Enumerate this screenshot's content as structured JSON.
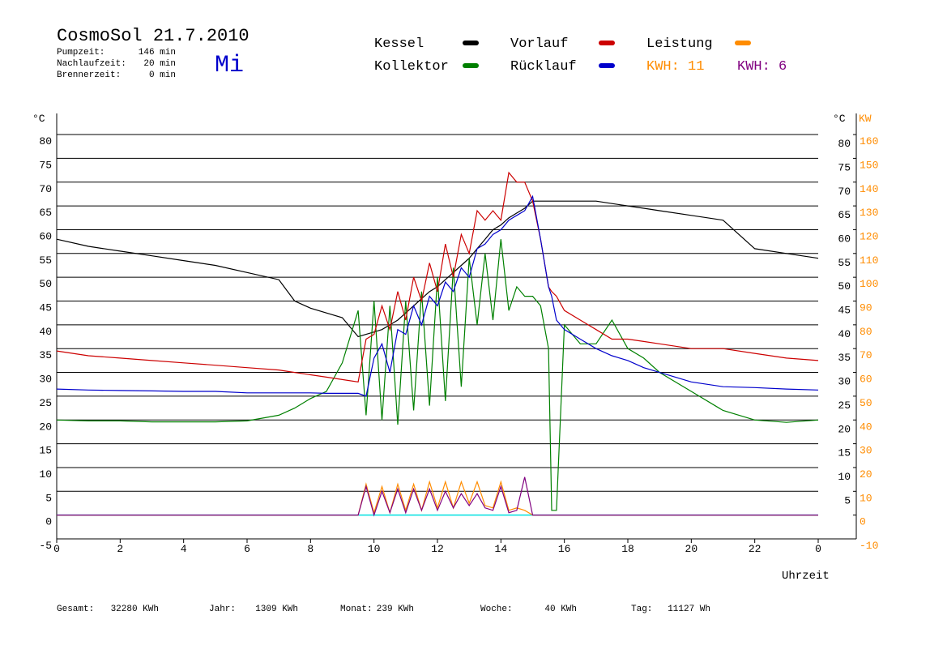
{
  "chart_data": {
    "type": "line",
    "title": "CosmoSol 21.7.2010",
    "weekday": "Mi",
    "info": [
      [
        "Pumpzeit:",
        "146 min"
      ],
      [
        "Nachlaufzeit:",
        "20 min"
      ],
      [
        "Brennerzeit:",
        "0 min"
      ]
    ],
    "y_unit": "°C",
    "y2_unit": "KW",
    "x_label": "Uhrzeit",
    "totals": [
      {
        "text": "KWH: 11",
        "color": "#ff8c00"
      },
      {
        "text": "KWH: 6",
        "color": "#800080"
      }
    ],
    "footer": [
      [
        "Gesamt:",
        "32280 KWh"
      ],
      [
        "Jahr:",
        "1309 KWh"
      ],
      [
        "Monat:",
        "239 KWh"
      ],
      [
        "Woche:",
        "40 KWh"
      ],
      [
        "Tag:",
        "11127 Wh"
      ]
    ],
    "xlim": [
      0,
      24
    ],
    "xticks": [
      0,
      2,
      4,
      6,
      8,
      10,
      12,
      14,
      16,
      18,
      20,
      22,
      {
        "value": 24,
        "label": "0"
      }
    ],
    "ylim": [
      -5,
      85
    ],
    "yticks": [
      -5,
      0,
      5,
      10,
      15,
      20,
      25,
      30,
      35,
      40,
      45,
      50,
      55,
      60,
      65,
      70,
      75,
      80
    ],
    "y2lim": [
      -10,
      170
    ],
    "y2ticks": [
      -10,
      0,
      10,
      20,
      30,
      40,
      50,
      60,
      70,
      80,
      90,
      100,
      110,
      120,
      130,
      140,
      150,
      160
    ],
    "grid": true,
    "baseline_color": "#00e0e0",
    "x": [
      0,
      1,
      2,
      3,
      4,
      5,
      6,
      7,
      7.5,
      8,
      8.5,
      9,
      9.5,
      9.75,
      10,
      10.25,
      10.5,
      10.75,
      11,
      11.25,
      11.5,
      11.75,
      12,
      12.25,
      12.5,
      12.75,
      13,
      13.25,
      13.5,
      13.75,
      14,
      14.25,
      14.5,
      14.75,
      15,
      15.25,
      15.5,
      15.6,
      15.75,
      16,
      16.5,
      17,
      17.5,
      18,
      18.5,
      19,
      20,
      21,
      22,
      23,
      24
    ],
    "series": [
      {
        "name": "Kessel",
        "color": "#000000",
        "values": [
          58,
          56.5,
          55.5,
          54.5,
          53.5,
          52.5,
          51,
          49.5,
          45,
          43.5,
          42.5,
          41.5,
          37.5,
          38,
          38.5,
          39,
          40,
          41,
          42.5,
          44,
          45.5,
          47,
          48,
          49.5,
          51,
          52.5,
          54,
          56,
          58,
          60,
          61,
          62.5,
          63.5,
          64.5,
          66,
          66,
          66,
          66,
          66,
          66,
          66,
          66,
          65.5,
          65,
          64.5,
          64,
          63,
          62,
          56,
          55,
          54
        ]
      },
      {
        "name": "Kollektor",
        "color": "#008000",
        "values": [
          20,
          19.8,
          19.8,
          19.6,
          19.6,
          19.6,
          19.8,
          21,
          22.5,
          24.5,
          26,
          32,
          43,
          21,
          45,
          20,
          44,
          19,
          45,
          22,
          47,
          23,
          50,
          24,
          52,
          27,
          54,
          40,
          55,
          41,
          58,
          43,
          48,
          46,
          46,
          44,
          35,
          1,
          1,
          40,
          36,
          36,
          41,
          35,
          33,
          30,
          26,
          22,
          20,
          19.5,
          20
        ]
      },
      {
        "name": "Vorlauf",
        "color": "#cc0000",
        "values": [
          34.5,
          33.5,
          33,
          32.5,
          32,
          31.5,
          31,
          30.5,
          30,
          29.5,
          29,
          28.5,
          28,
          37,
          38,
          44,
          39,
          47,
          41,
          50,
          45,
          53,
          47,
          57,
          50,
          59,
          55,
          64,
          62,
          64,
          62,
          72,
          70,
          70,
          66,
          58,
          48,
          47,
          46,
          43,
          41,
          39,
          37,
          37,
          36.5,
          36,
          35,
          35,
          34,
          33,
          32.5
        ]
      },
      {
        "name": "Rücklauf",
        "color": "#0000cc",
        "values": [
          26.5,
          26.3,
          26.2,
          26.1,
          26,
          26,
          25.7,
          25.7,
          25.7,
          25.7,
          25.6,
          25.6,
          25.6,
          25,
          33,
          36,
          30,
          39,
          38,
          44,
          40,
          46,
          44,
          49,
          47,
          52,
          50,
          56,
          57,
          59,
          60,
          62,
          63,
          64,
          67,
          58,
          48,
          46,
          41,
          39,
          37,
          35,
          33.5,
          32.5,
          31,
          30,
          28,
          27,
          26.8,
          26.5,
          26.3
        ]
      },
      {
        "name": "Leistung",
        "color": "#ff8c00",
        "axis": "y2",
        "values": [
          0,
          0,
          0,
          0,
          0,
          0,
          0,
          0,
          0,
          0,
          0,
          0,
          0,
          13,
          1,
          12,
          1,
          13,
          2,
          13,
          2,
          14,
          3,
          14,
          3,
          14,
          5,
          14,
          4,
          3,
          14,
          2,
          3,
          2,
          0,
          0,
          0,
          0,
          0,
          0,
          0,
          0,
          0,
          0,
          0,
          0,
          0,
          0,
          0,
          0,
          0
        ]
      },
      {
        "color": "#800080",
        "axis": "y2",
        "values": [
          0,
          0,
          0,
          0,
          0,
          0,
          0,
          0,
          0,
          0,
          0,
          0,
          0,
          12,
          0,
          10,
          1,
          11,
          1,
          11,
          2,
          11,
          2,
          10,
          3,
          9,
          4,
          9,
          3,
          2,
          12,
          1,
          2,
          16,
          0,
          0,
          0,
          0,
          0,
          0,
          0,
          0,
          0,
          0,
          0,
          0,
          0,
          0,
          0,
          0,
          0
        ]
      }
    ]
  }
}
